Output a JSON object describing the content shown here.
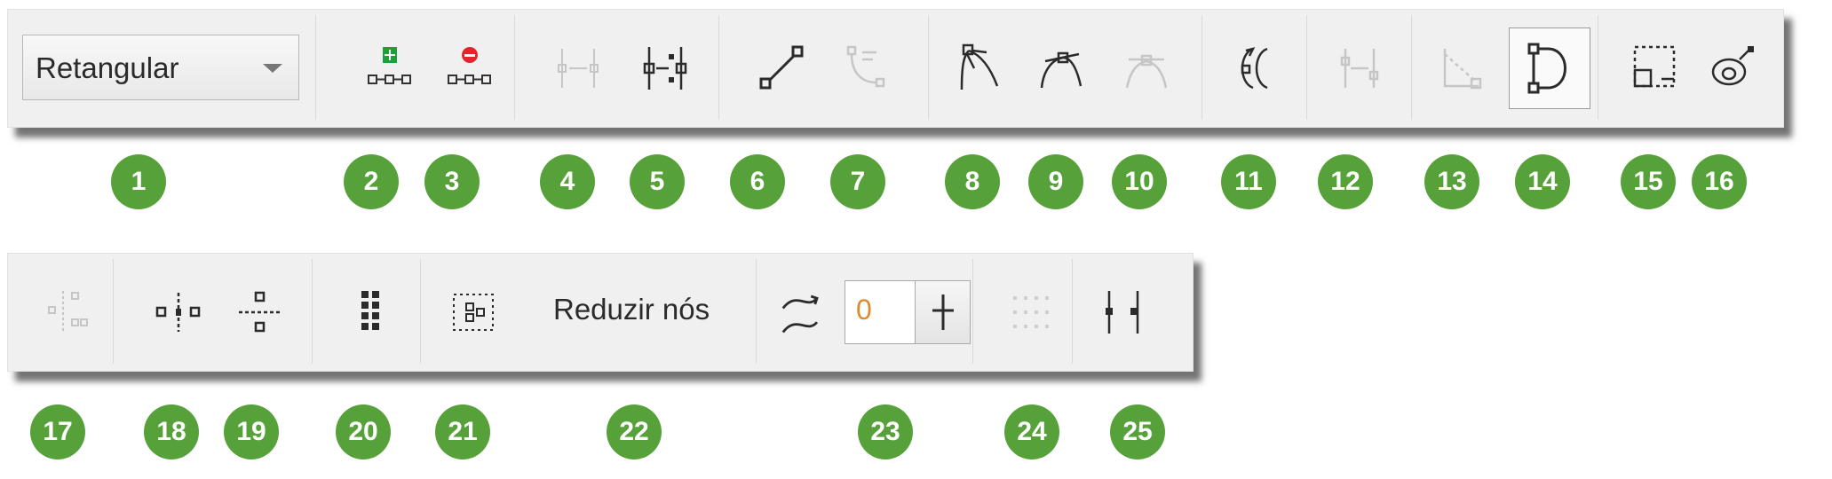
{
  "toolbar1": {
    "mode_select": {
      "value": "Retangular",
      "icon": "chevron-down-icon"
    },
    "buttons": [
      {
        "name": "add-node-button",
        "icon": "add-node-icon",
        "enabled": true
      },
      {
        "name": "delete-node-button",
        "icon": "delete-node-icon",
        "enabled": true
      },
      {
        "name": "join-nodes-button",
        "icon": "join-nodes-icon",
        "enabled": false
      },
      {
        "name": "break-curve-button",
        "icon": "break-curve-icon",
        "enabled": true
      },
      {
        "name": "to-line-button",
        "icon": "to-line-icon",
        "enabled": true
      },
      {
        "name": "to-curve-button",
        "icon": "to-curve-icon",
        "enabled": false
      },
      {
        "name": "cusp-node-button",
        "icon": "cusp-node-icon",
        "enabled": true
      },
      {
        "name": "smooth-node-button",
        "icon": "smooth-node-icon",
        "enabled": true
      },
      {
        "name": "symmetrical-node-button",
        "icon": "symmetrical-node-icon",
        "enabled": false
      },
      {
        "name": "reverse-direction-button",
        "icon": "reverse-direction-icon",
        "enabled": true
      },
      {
        "name": "extend-curve-button",
        "icon": "extend-curve-icon",
        "enabled": false
      },
      {
        "name": "extract-subpath-button",
        "icon": "extract-subpath-icon",
        "enabled": false
      },
      {
        "name": "close-curve-button",
        "icon": "close-curve-icon",
        "enabled": true,
        "active": true
      },
      {
        "name": "stretch-scale-nodes-button",
        "icon": "stretch-scale-icon",
        "enabled": true
      },
      {
        "name": "rotate-skew-nodes-button",
        "icon": "rotate-skew-icon",
        "enabled": true
      }
    ]
  },
  "toolbar2": {
    "buttons_left": [
      {
        "name": "align-nodes-button",
        "icon": "align-nodes-icon",
        "enabled": false
      },
      {
        "name": "reflect-horizontal-button",
        "icon": "reflect-horizontal-icon",
        "enabled": true
      },
      {
        "name": "reflect-vertical-button",
        "icon": "reflect-vertical-icon",
        "enabled": true
      },
      {
        "name": "elastic-mode-button",
        "icon": "elastic-mode-icon",
        "enabled": true
      },
      {
        "name": "select-all-nodes-button",
        "icon": "select-all-nodes-icon",
        "enabled": true
      }
    ],
    "reduce_nodes_label": "Reduzir nós",
    "curve_smoothness": {
      "icon": "curve-smoothness-icon",
      "value": "0",
      "button_icon": "slider-icon"
    },
    "buttons_right": [
      {
        "name": "select-nodes-button",
        "icon": "select-nodes-icon",
        "enabled": false
      },
      {
        "name": "break-apart-button",
        "icon": "break-apart-icon",
        "enabled": true
      }
    ]
  },
  "badges_row1": [
    "1",
    "2",
    "3",
    "4",
    "5",
    "6",
    "7",
    "8",
    "9",
    "10",
    "11",
    "12",
    "13",
    "14",
    "15",
    "16"
  ],
  "badges_row2": [
    "17",
    "18",
    "19",
    "20",
    "21",
    "22",
    "23",
    "24",
    "25"
  ],
  "colors": {
    "badge": "#57a13a",
    "toolbar_bg": "#f0f0f0",
    "add_node": "#1aa13a",
    "delete_node": "#e0262c",
    "disabled": "#c6c6c6",
    "icon": "#2b2b2b",
    "input_value": "#e08a2c"
  }
}
